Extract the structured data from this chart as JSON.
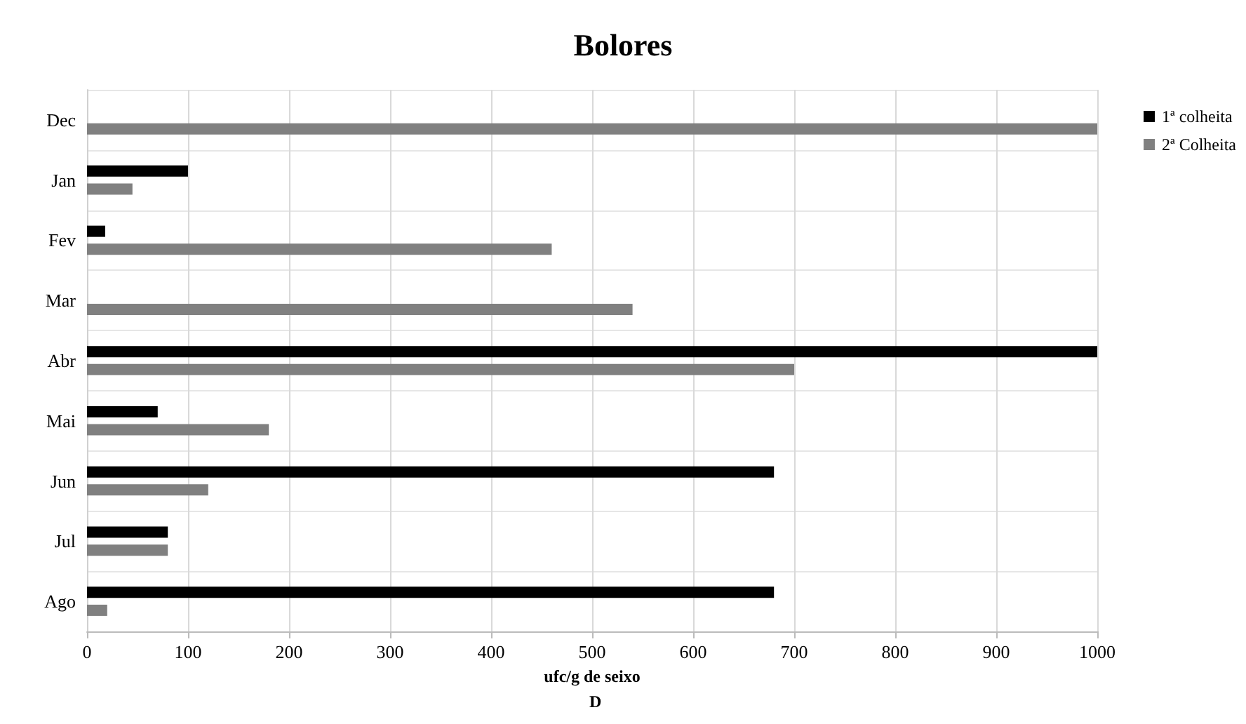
{
  "chart_data": {
    "type": "bar",
    "orientation": "horizontal",
    "title": "Bolores",
    "xlabel": "ufc/g de seixo",
    "annotations": [
      "D"
    ],
    "categories": [
      "Dec",
      "Jan",
      "Fev",
      "Mar",
      "Abr",
      "Mai",
      "Jun",
      "Jul",
      "Ago"
    ],
    "series": [
      {
        "name": "1ª colheita",
        "color": "#000000",
        "values": [
          null,
          100,
          18,
          null,
          1000,
          70,
          680,
          80,
          680
        ]
      },
      {
        "name": "2ª Colheita",
        "color": "#808080",
        "values": [
          1000,
          45,
          460,
          540,
          700,
          180,
          120,
          80,
          20
        ]
      }
    ],
    "xlim": [
      0,
      1000
    ],
    "xticks": [
      0,
      100,
      200,
      300,
      400,
      500,
      600,
      700,
      800,
      900,
      1000
    ],
    "grid": true,
    "legend": "top right"
  }
}
